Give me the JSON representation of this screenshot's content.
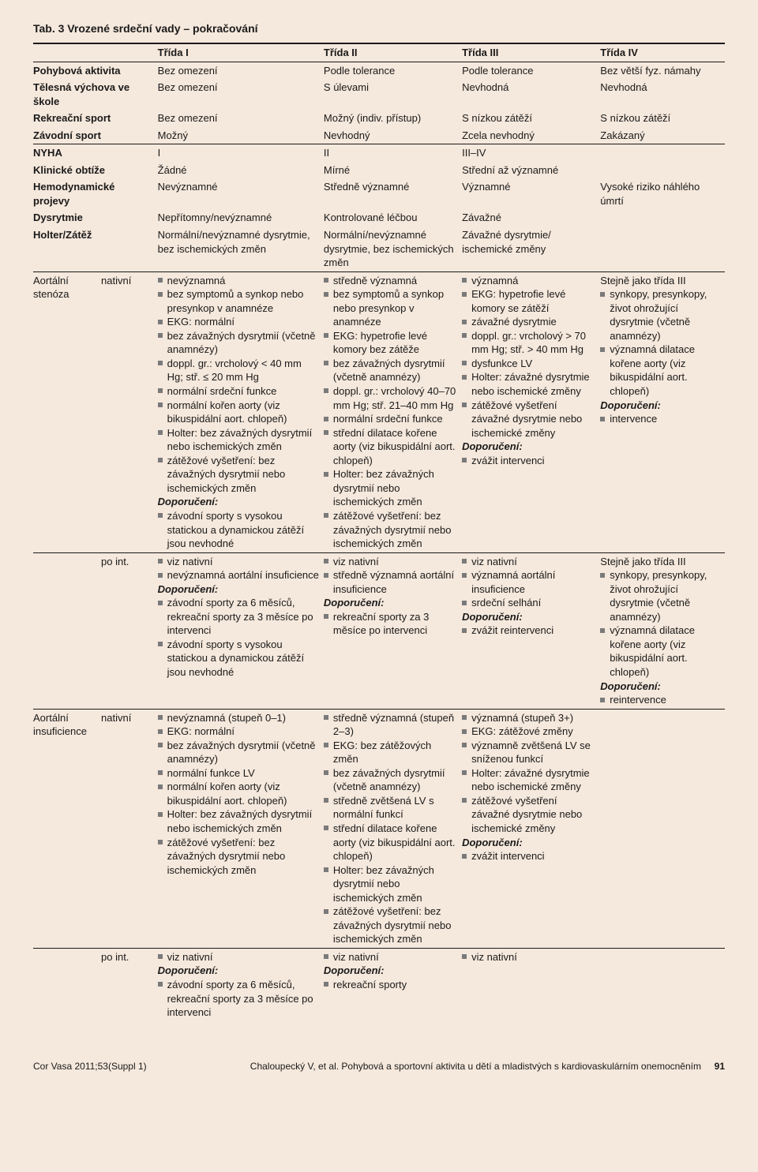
{
  "title": "Tab. 3  Vrozené srdeční vady – pokračování",
  "columns": [
    "Třída I",
    "Třída II",
    "Třída III",
    "Třída IV"
  ],
  "block1_rows": [
    {
      "label": "Pohybová aktivita",
      "c": [
        "Bez omezení",
        "Podle tolerance",
        "Podle tolerance",
        "Bez větší fyz. námahy"
      ]
    },
    {
      "label": "Tělesná výchova ve škole",
      "c": [
        "Bez omezení",
        "S úlevami",
        "Nevhodná",
        "Nevhodná"
      ]
    },
    {
      "label": "Rekreační sport",
      "c": [
        "Bez omezení",
        "Možný (indiv. přístup)",
        "S nízkou zátěží",
        "S nízkou zátěží"
      ]
    },
    {
      "label": "Závodní sport",
      "c": [
        "Možný",
        "Nevhodný",
        "Zcela nevhodný",
        "Zakázaný"
      ]
    }
  ],
  "block2": {
    "nyha": {
      "label": "NYHA",
      "c": [
        "I",
        "II",
        "III–IV",
        ""
      ]
    },
    "klin": {
      "label": "Klinické obtíže",
      "c": [
        "Žádné",
        "Mírné",
        "Střední až významné",
        ""
      ]
    },
    "hemo": {
      "label": "Hemodynamické projevy",
      "c": [
        "Nevýznamné",
        "Středně významné",
        "Významné",
        "Vysoké riziko náhlého úmrtí"
      ]
    },
    "dys": {
      "label": "Dysrytmie",
      "c": [
        "Nepřítomny/nevýznamné",
        "Kontrolované léčbou",
        "Závažné",
        ""
      ]
    },
    "holter": {
      "label": "Holter/Zátěž",
      "c": [
        "Normální/nevýznamné dysrytmie, bez ischemických změn",
        "Normální/nevýznamné dysrytmie, bez ischemických změn",
        "Závažné dysrytmie/ ischemické změny",
        ""
      ]
    }
  },
  "aort_sten": {
    "label1": "Aortální",
    "label2": "stenóza",
    "sub_native": "nativní",
    "sub_point": "po int.",
    "native": {
      "c1": {
        "items": [
          "nevýznamná",
          "bez symptomů a synkop nebo presynkop v anamnéze",
          "EKG: normální",
          "bez závažných dysrytmií (včetně anamnézy)",
          "doppl. gr.: vrcholový < 40 mm Hg; stř. ≤ 20 mm Hg",
          "normální srdeční funkce",
          "normální kořen aorty (viz bikuspidální aort. chlopeň)",
          "Holter: bez závažných dysrytmií nebo ischemických změn",
          "zátěžové vyšetření: bez závažných dysrytmií nebo ischemických změn"
        ],
        "dopo_label": "Doporučení:",
        "dopo_items": [
          "závodní sporty s vysokou statickou a dynamickou zátěží jsou nevhodné"
        ]
      },
      "c2": {
        "items": [
          "středně významná",
          "bez symptomů a synkop nebo presynkop v anamnéze",
          "EKG: hypetrofie levé komory bez zátěže",
          "bez závažných dysrytmií (včetně anamnézy)",
          "doppl. gr.: vrcholový 40–70 mm Hg; stř. 21–40 mm Hg",
          "normální srdeční funkce",
          "střední dilatace kořene aorty (viz bikuspidální aort. chlopeň)",
          "Holter: bez závažných dysrytmií nebo ischemických změn",
          "zátěžové vyšetření: bez závažných dysrytmií nebo ischemických změn"
        ]
      },
      "c3": {
        "items": [
          "významná",
          "EKG: hypetrofie levé komory se zátěží",
          "závažné dysrytmie",
          "doppl. gr.: vrcholový > 70 mm Hg; stř. > 40 mm Hg",
          "dysfunkce LV",
          "Holter: závažné dysrytmie nebo ischemické změny",
          "zátěžové vyšetření závažné dysrytmie nebo ischemické změny"
        ],
        "dopo_label": "Doporučení:",
        "dopo_items": [
          "zvážit intervenci"
        ]
      },
      "c4": {
        "lead": "Stejně jako třída III",
        "items": [
          "synkopy, presynkopy, život ohrožující dysrytmie (včetně anamnézy)",
          "významná dilatace kořene aorty (viz bikuspidální aort. chlopeň)"
        ],
        "dopo_label": "Doporučení:",
        "dopo_items": [
          "intervence"
        ]
      }
    },
    "point": {
      "c1": {
        "items": [
          "viz nativní",
          "nevýznamná aortální insuficience"
        ],
        "dopo_label": "Doporučení:",
        "dopo_items": [
          "závodní sporty za 6 měsíců, rekreační sporty za 3 měsíce po intervenci",
          "závodní sporty s vysokou statickou a dynamickou zátěží jsou nevhodné"
        ]
      },
      "c2": {
        "items": [
          "viz nativní",
          "středně významná aortální insuficience"
        ],
        "dopo_label": "Doporučení:",
        "dopo_items": [
          "rekreační sporty za 3 měsíce po intervenci"
        ]
      },
      "c3": {
        "items": [
          "viz nativní",
          "významná aortální insuficience",
          "srdeční selhání"
        ],
        "dopo_label": "Doporučení:",
        "dopo_items": [
          "zvážit reintervenci"
        ]
      },
      "c4": {
        "lead": "Stejně jako třída III",
        "items": [
          "synkopy, presynkopy, život ohrožující dysrytmie (včetně anamnézy)",
          "významná dilatace kořene aorty (viz bikuspidální aort. chlopeň)"
        ],
        "dopo_label": "Doporučení:",
        "dopo_items": [
          "reintervence"
        ]
      }
    }
  },
  "aort_insuf": {
    "label1": "Aortální",
    "label2": "insuficience",
    "sub_native": "nativní",
    "sub_point": "po int.",
    "native": {
      "c1": {
        "items": [
          "nevýznamná (stupeň 0–1)",
          "EKG: normální",
          "bez závažných dysrytmií (včetně anamnézy)",
          "normální funkce LV",
          "normální kořen aorty (viz bikuspidální aort. chlopeň)",
          "Holter: bez závažných dysrytmií nebo ischemických změn",
          "zátěžové vyšetření: bez závažných dysrytmií nebo ischemických změn"
        ]
      },
      "c2": {
        "items": [
          "středně významná (stupeň 2–3)",
          "EKG: bez zátěžových změn",
          "bez závažných dysrytmií (včetně anamnézy)",
          "středně zvětšená LV s normální funkcí",
          "střední dilatace kořene aorty (viz bikuspidální aort. chlopeň)",
          "Holter: bez závažných dysrytmií nebo ischemických změn",
          "zátěžové vyšetření: bez závažných dysrytmií nebo ischemických změn"
        ]
      },
      "c3": {
        "items": [
          "významná (stupeň 3+)",
          "EKG: zátěžové změny",
          "významně zvětšená LV se sníženou funkcí",
          "Holter: závažné dysrytmie nebo ischemické změny",
          "zátěžové vyšetření závažné dysrytmie nebo ischemické změny"
        ],
        "dopo_label": "Doporučení:",
        "dopo_items": [
          "zvážit intervenci"
        ]
      }
    },
    "point": {
      "c1": {
        "items": [
          "viz nativní"
        ],
        "dopo_label": "Doporučení:",
        "dopo_items": [
          "závodní sporty za 6 měsíců, rekreační sporty za 3 měsíce po intervenci"
        ]
      },
      "c2": {
        "items": [
          "viz nativní"
        ],
        "dopo_label": "Doporučení:",
        "dopo_items": [
          "rekreační sporty"
        ]
      },
      "c3": {
        "items": [
          "viz nativní"
        ]
      }
    }
  },
  "footer": {
    "left": "Cor Vasa 2011;53(Suppl 1)",
    "center": "Chaloupecký V, et al.   Pohybová a sportovní aktivita u dětí a mladistvých s kardiovaskulárním onemocněním",
    "page": "91"
  }
}
